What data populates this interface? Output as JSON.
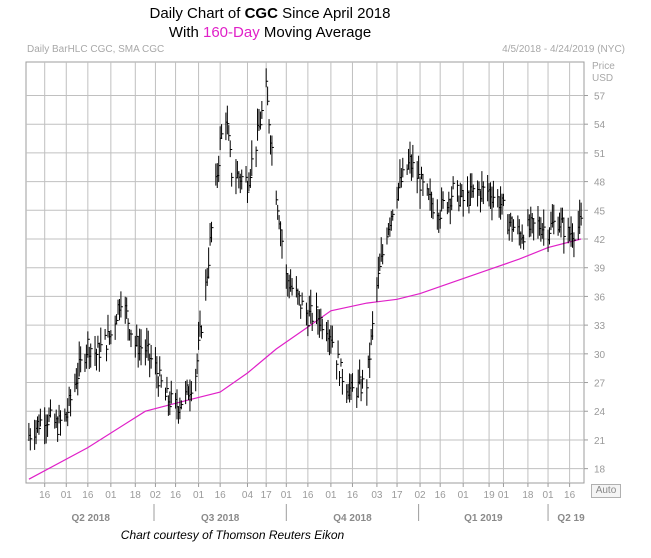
{
  "title": {
    "line1_prefix": "Daily Chart of ",
    "line1_ticker": "CGC",
    "line1_suffix": " Since April 2018",
    "line2_prefix": "With ",
    "line2_highlight": "160-Day",
    "line2_suffix": " Moving Average"
  },
  "header": {
    "left": "Daily BarHLC CGC, SMA CGC",
    "right": "4/5/2018 - 4/24/2019 (NYC)"
  },
  "axis": {
    "unit_line1": "Price",
    "unit_line2": "USD",
    "auto_button": "Auto"
  },
  "credit": "Chart courtesy of Thomson Reuters Eikon",
  "colors": {
    "price_bars": "#000000",
    "sma_line": "#e020c8",
    "grid": "#c0c0c0",
    "title_highlight": "#e020c8"
  },
  "chart_data": {
    "type": "line",
    "series": [
      {
        "name": "",
        "kind": "bar-hlc",
        "x": [
          "2018-04-05",
          "2018-04-16",
          "2018-04-25",
          "2018-05-01",
          "2018-05-08",
          "2018-05-16",
          "2018-05-22",
          "2018-06-01",
          "2018-06-08",
          "2018-06-18",
          "2018-06-25",
          "2018-07-02",
          "2018-07-09",
          "2018-07-16",
          "2018-07-23",
          "2018-07-30",
          "2018-08-06",
          "2018-08-16",
          "2018-08-20",
          "2018-08-24",
          "2018-09-04",
          "2018-09-10",
          "2018-09-17",
          "2018-09-24",
          "2018-10-01",
          "2018-10-08",
          "2018-10-16",
          "2018-10-22",
          "2018-10-29",
          "2018-11-01",
          "2018-11-08",
          "2018-11-15",
          "2018-11-26",
          "2018-12-03",
          "2018-12-10",
          "2018-12-17",
          "2018-12-26",
          "2019-01-02",
          "2019-01-08",
          "2019-01-16",
          "2019-01-25",
          "2019-02-01",
          "2019-02-11",
          "2019-02-19",
          "2019-02-26",
          "2019-03-04",
          "2019-03-12",
          "2019-03-18",
          "2019-03-25",
          "2019-04-01",
          "2019-04-08",
          "2019-04-15",
          "2019-04-24"
        ],
        "values": [
          21.5,
          23.5,
          22.5,
          23.5,
          27.5,
          31.0,
          30.0,
          32.0,
          36.0,
          31.0,
          30.5,
          28.5,
          25.5,
          24.5,
          25.5,
          28.0,
          37.0,
          52.0,
          55.0,
          49.0,
          48.0,
          52.0,
          57.5,
          47.0,
          38.0,
          36.0,
          34.0,
          34.0,
          33.0,
          32.0,
          28.0,
          26.0,
          27.0,
          37.0,
          43.0,
          47.0,
          50.0,
          48.0,
          46.0,
          45.0,
          47.0,
          46.0,
          47.0,
          47.0,
          46.0,
          44.0,
          42.5,
          43.0,
          43.5,
          43.0,
          44.0,
          42.5,
          43.5
        ]
      },
      {
        "name": "",
        "kind": "sma",
        "x": [
          "2018-04-05",
          "2018-05-16",
          "2018-06-25",
          "2018-07-23",
          "2018-08-16",
          "2018-09-04",
          "2018-09-24",
          "2018-10-16",
          "2018-11-01",
          "2018-11-26",
          "2018-12-17",
          "2019-01-02",
          "2019-01-25",
          "2019-02-19",
          "2019-03-12",
          "2019-04-01",
          "2019-04-24"
        ],
        "values": [
          16.9,
          20.2,
          24.0,
          25.1,
          26.0,
          28.0,
          30.5,
          32.8,
          34.5,
          35.3,
          35.7,
          36.3,
          37.5,
          38.8,
          39.9,
          41.1,
          42.0
        ]
      }
    ],
    "ylim": [
      16.5,
      60.5
    ],
    "yticks": [
      "18",
      "21",
      "24",
      "27",
      "30",
      "33",
      "36",
      "39",
      "42",
      "45",
      "48",
      "51",
      "54",
      "57"
    ],
    "xticks": [
      "16",
      "01",
      "16",
      "01",
      "18",
      "02",
      "16",
      "01",
      "16",
      "04",
      "17",
      "01",
      "16",
      "01",
      "16",
      "03",
      "17",
      "02",
      "16",
      "01",
      "19",
      "01",
      "18",
      "01",
      "16"
    ],
    "quarters": [
      "Q2 2018",
      "Q3 2018",
      "Q4 2018",
      "Q1 2019",
      "Q2 19"
    ],
    "grid": true,
    "y_axis_side": "right"
  }
}
